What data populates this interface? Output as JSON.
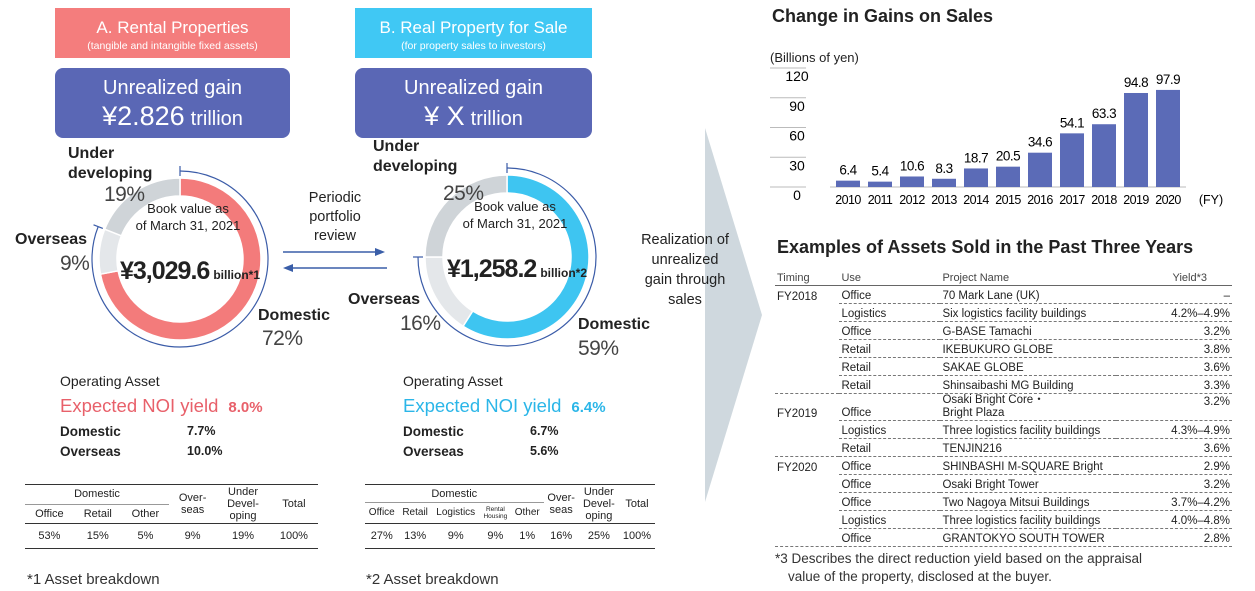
{
  "panel_a": {
    "title": "A. Rental Properties",
    "subtitle": "(tangible and intangible fixed assets)",
    "gain_label": "Unrealized gain",
    "gain_value": "¥2.826",
    "gain_unit": "trillion",
    "book_lines": [
      "Book value as",
      "of March 31, 2021"
    ],
    "book_value": "¥3,029.6",
    "book_unit": "billion*1",
    "noi_heading": "Operating Asset",
    "noi_label": "Expected NOI yield",
    "noi_value": "8.0%",
    "noi_rows": [
      {
        "label": "Domestic",
        "value": "7.7%"
      },
      {
        "label": "Overseas",
        "value": "10.0%"
      }
    ],
    "table": {
      "group": "Domestic",
      "group_cols": [
        "Office",
        "Retail",
        "Other"
      ],
      "cols": [
        "Over-\nseas",
        "Under\nDevel-\noping",
        "Total"
      ],
      "values": [
        "53%",
        "15%",
        "5%",
        "9%",
        "19%",
        "100%"
      ]
    },
    "footnote": "*1 Asset breakdown"
  },
  "panel_b": {
    "title": "B. Real Property for Sale",
    "subtitle": "(for property sales to investors)",
    "gain_label": "Unrealized gain",
    "gain_value": "¥ X",
    "gain_unit": "trillion",
    "book_lines": [
      "Book value as",
      "of March 31, 2021"
    ],
    "book_value": "¥1,258.2",
    "book_unit": "billion*2",
    "noi_heading": "Operating Asset",
    "noi_label": "Expected NOI yield",
    "noi_value": "6.4%",
    "noi_rows": [
      {
        "label": "Domestic",
        "value": "6.7%"
      },
      {
        "label": "Overseas",
        "value": "5.6%"
      }
    ],
    "table": {
      "group": "Domestic",
      "group_cols": [
        "Office",
        "Retail",
        "Logistics",
        "Rental\nHousing",
        "Other"
      ],
      "cols": [
        "Over-\nseas",
        "Under\nDevel-\noping",
        "Total"
      ],
      "values": [
        "27%",
        "13%",
        "9%",
        "9%",
        "1%",
        "16%",
        "25%",
        "100%"
      ]
    },
    "footnote": "*2 Asset breakdown"
  },
  "review_lines": [
    "Periodic",
    "portfolio",
    "review"
  ],
  "realization_lines": [
    "Realization of",
    "unrealized",
    "gain through",
    "sales"
  ],
  "chart_data": [
    {
      "type": "donut",
      "categories": [
        "Domestic",
        "Overseas",
        "Under developing"
      ],
      "values": [
        72,
        9,
        19
      ],
      "value_labels": [
        "72%",
        "9%",
        "19%"
      ],
      "colors": [
        "#f37b7b",
        "#e4e7ea",
        "#cfd4d8"
      ]
    },
    {
      "type": "donut",
      "categories": [
        "Domestic",
        "Overseas",
        "Under developing"
      ],
      "values": [
        59,
        16,
        25
      ],
      "value_labels": [
        "59%",
        "16%",
        "25%"
      ],
      "colors": [
        "#3ec5f1",
        "#e4e7ea",
        "#cfd4d8"
      ]
    },
    {
      "type": "bar",
      "title": "Change in Gains on Sales",
      "y_label": "(Billions of yen)",
      "x_label": "(FY)",
      "categories": [
        "2010",
        "2011",
        "2012",
        "2013",
        "2014",
        "2015",
        "2016",
        "2017",
        "2018",
        "2019",
        "2020"
      ],
      "values": [
        6.4,
        5.4,
        10.6,
        8.3,
        18.7,
        20.5,
        34.6,
        54.1,
        63.3,
        94.8,
        97.9
      ],
      "color": "#5b6bb7",
      "ylim": [
        0,
        120
      ],
      "yticks": [
        0,
        30,
        60,
        90,
        120
      ]
    }
  ],
  "sold": {
    "title": "Examples of Assets Sold in the Past Three Years",
    "headers": [
      "Timing",
      "Use",
      "Project Name",
      "Yield*3"
    ],
    "rows": [
      {
        "timing": "FY2018",
        "use": "Office",
        "name": "70 Mark Lane (UK)",
        "yield": "–"
      },
      {
        "use": "Logistics",
        "name": "Six logistics facility buildings",
        "yield": "4.2%–4.9%"
      },
      {
        "use": "Office",
        "name": "G-BASE Tamachi",
        "yield": "3.2%"
      },
      {
        "use": "Retail",
        "name": "IKEBUKURO GLOBE",
        "yield": "3.8%"
      },
      {
        "use": "Retail",
        "name": "SAKAE GLOBE",
        "yield": "3.6%"
      },
      {
        "use": "Retail",
        "name": "Shinsaibashi MG Building",
        "yield": "3.3%"
      },
      {
        "timing": "FY2019",
        "use": "Office",
        "name": [
          "Osaki Bright Core・",
          "Bright Plaza"
        ],
        "yield": "3.2%"
      },
      {
        "use": "Logistics",
        "name": "Three logistics facility buildings",
        "yield": "4.3%–4.9%"
      },
      {
        "use": "Retail",
        "name": "TENJIN216",
        "yield": "3.6%"
      },
      {
        "timing": "FY2020",
        "use": "Office",
        "name": "SHINBASHI M-SQUARE Bright",
        "yield": "2.9%"
      },
      {
        "use": "Office",
        "name": "Osaki Bright Tower",
        "yield": "3.2%"
      },
      {
        "use": "Office",
        "name": "Two Nagoya Mitsui Buildings",
        "yield": "3.7%–4.2%"
      },
      {
        "use": "Logistics",
        "name": "Three logistics facility buildings",
        "yield": "4.0%–4.8%"
      },
      {
        "use": "Office",
        "name": "GRANTOKYO SOUTH TOWER",
        "yield": "2.8%"
      }
    ],
    "footnote_lines": [
      "*3 Describes the direct reduction yield based on the appraisal",
      "value of the property, disclosed at the buyer."
    ]
  }
}
